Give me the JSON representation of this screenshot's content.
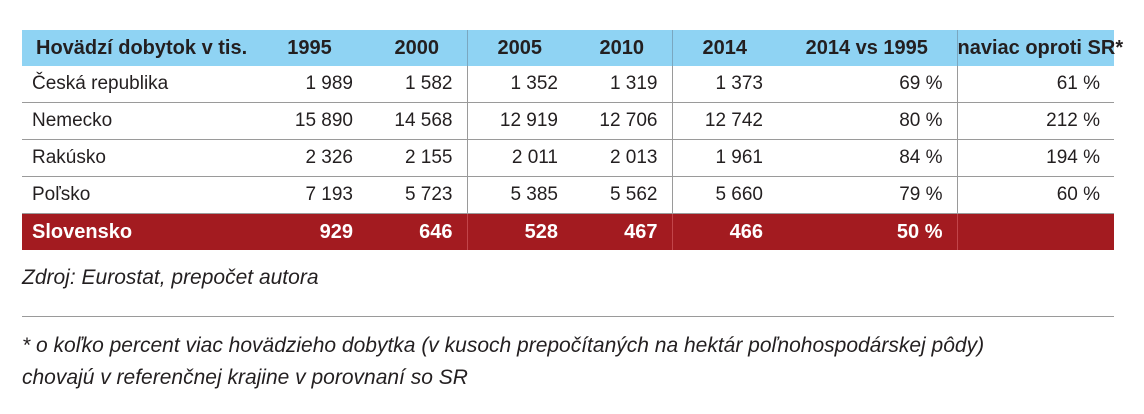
{
  "chart_data": {
    "type": "table",
    "columns": [
      "Hovädzí dobytok v tis.",
      "1995",
      "2000",
      "2005",
      "2010",
      "2014",
      "2014 vs 1995",
      "naviac oproti  SR*"
    ],
    "rows": [
      {
        "country": "Česká republika",
        "cells": [
          "1 989",
          "1 582",
          "1 352",
          "1 319",
          "1 373",
          "69 %",
          "61 %"
        ]
      },
      {
        "country": "Nemecko",
        "cells": [
          "15 890",
          "14 568",
          "12 919",
          "12 706",
          "12 742",
          "80 %",
          "212 %"
        ]
      },
      {
        "country": "Rakúsko",
        "cells": [
          "2 326",
          "2 155",
          "2 011",
          "2 013",
          "1 961",
          "84 %",
          "194 %"
        ]
      },
      {
        "country": "Poľsko",
        "cells": [
          "7 193",
          "5 723",
          "5 385",
          "5 562",
          "5 660",
          "79 %",
          "60 %"
        ]
      },
      {
        "country": "Slovensko",
        "cells": [
          "929",
          "646",
          "528",
          "467",
          "466",
          "50 %",
          ""
        ]
      }
    ],
    "values": {
      "Česká republika": [
        1989,
        1582,
        1352,
        1319,
        1373
      ],
      "Nemecko": [
        15890,
        14568,
        12919,
        12706,
        12742
      ],
      "Rakúsko": [
        2326,
        2155,
        2011,
        2013,
        1961
      ],
      "Poľsko": [
        7193,
        5723,
        5385,
        5562,
        5660
      ],
      "Slovensko": [
        929,
        646,
        528,
        467,
        466
      ]
    },
    "highlighted_row": "Slovensko"
  },
  "colors": {
    "header_bg": "#8fd3f3",
    "highlight_bg": "#a31b20",
    "highlight_text": "#ffffff"
  },
  "source": "Zdroj: Eurostat, prepočet autora",
  "footnote": {
    "line1": "* o koľko percent viac hovädzieho dobytka (v kusoch prepočítaných na hektár poľnohospodárskej pôdy)",
    "line2": "chovajú v referenčnej krajine v porovnaní so SR"
  }
}
